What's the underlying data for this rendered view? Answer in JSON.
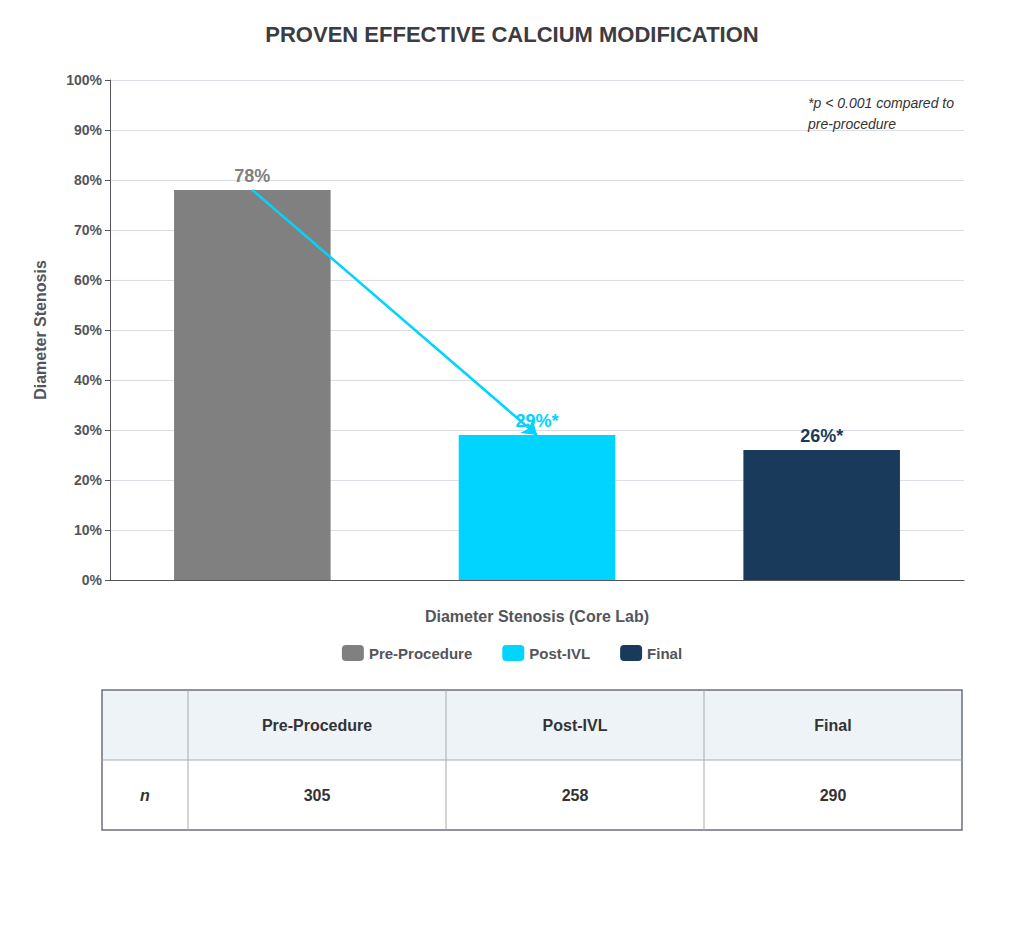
{
  "chart_data": {
    "type": "bar",
    "title": "PROVEN EFFECTIVE CALCIUM MODIFICATION",
    "categories": [
      "Pre-Procedure",
      "Post-IVL",
      "Final"
    ],
    "values": [
      78,
      29,
      26
    ],
    "value_labels": [
      "78%",
      "29%*",
      "26%*"
    ],
    "colors": [
      "#808080",
      "#00d4ff",
      "#1a3a5c"
    ],
    "xlabel": "Diameter Stenosis (Core Lab)",
    "ylabel": "Diameter Stenosis",
    "ylim": [
      0,
      100
    ],
    "yticks": [
      {
        "value": 0,
        "label": "0%"
      },
      {
        "value": 10,
        "label": "10%"
      },
      {
        "value": 20,
        "label": "20%"
      },
      {
        "value": 30,
        "label": "30%"
      },
      {
        "value": 40,
        "label": "40%"
      },
      {
        "value": 50,
        "label": "50%"
      },
      {
        "value": 60,
        "label": "60%"
      },
      {
        "value": 70,
        "label": "70%"
      },
      {
        "value": 80,
        "label": "80%"
      },
      {
        "value": 90,
        "label": "90%"
      },
      {
        "value": 100,
        "label": "100%"
      }
    ],
    "grid": true,
    "legend": "bottom",
    "data_labels": true,
    "tick_labels": "y",
    "annotations": [
      "*p < 0.001 compared to\npre-procedure"
    ],
    "table": {
      "columns": [
        "Pre-Procedure",
        "Post-IVL",
        "Final"
      ],
      "row_label": "n",
      "values": [
        305,
        258,
        290
      ]
    }
  }
}
